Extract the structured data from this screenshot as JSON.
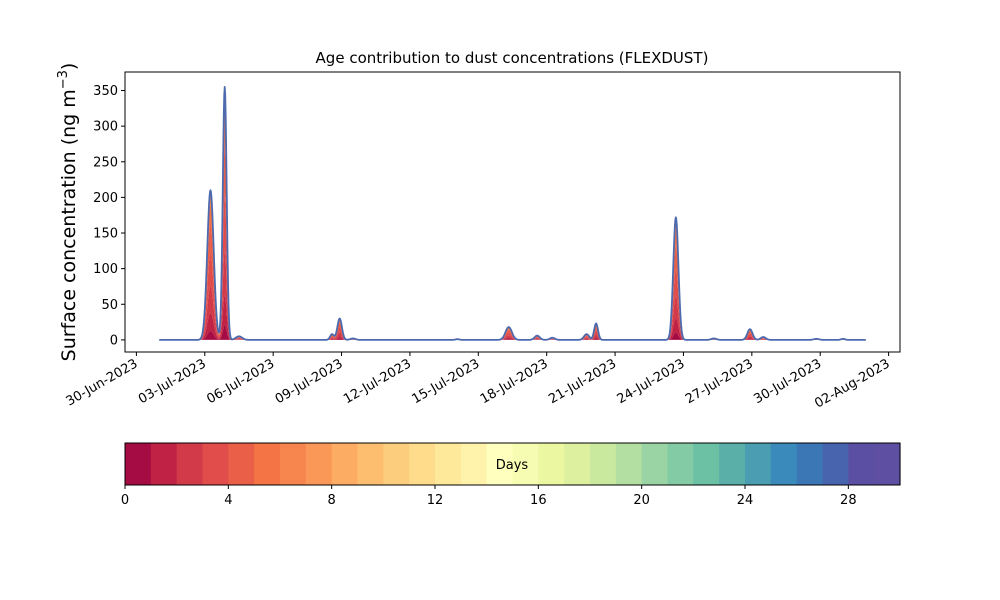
{
  "chart_data": {
    "type": "area",
    "title": "Age contribution to dust concentrations (FLEXDUST)",
    "ylabel_main": "Surface concentration (ng m",
    "ylabel_sup": "−3",
    "ylabel_close": ")",
    "xlabel": "",
    "ylim": [
      -17,
      376
    ],
    "xlim": [
      "2023-06-29 12:00",
      "2023-08-02 12:00"
    ],
    "y_ticks": [
      0,
      50,
      100,
      150,
      200,
      250,
      300,
      350
    ],
    "x_tick_labels": [
      "30-Jun-2023",
      "03-Jul-2023",
      "06-Jul-2023",
      "09-Jul-2023",
      "12-Jul-2023",
      "15-Jul-2023",
      "18-Jul-2023",
      "21-Jul-2023",
      "24-Jul-2023",
      "27-Jul-2023",
      "30-Jul-2023",
      "02-Aug-2023"
    ],
    "x_tick_dates": [
      "2023-06-30",
      "2023-07-03",
      "2023-07-06",
      "2023-07-09",
      "2023-07-12",
      "2023-07-15",
      "2023-07-18",
      "2023-07-21",
      "2023-07-24",
      "2023-07-27",
      "2023-07-30",
      "2023-08-02"
    ],
    "grid": false,
    "x_start": "2023-07-01 00:00",
    "x_end": "2023-08-01 00:00",
    "total_line_color": "#4c6aad",
    "total_concentration_peaks": [
      {
        "center": "2023-07-03 06:00",
        "height": 210,
        "width_h": 5
      },
      {
        "center": "2023-07-03 21:00",
        "height": 355,
        "width_h": 3
      },
      {
        "center": "2023-07-04 12:00",
        "height": 5,
        "width_h": 5
      },
      {
        "center": "2023-07-08 14:00",
        "height": 8,
        "width_h": 3
      },
      {
        "center": "2023-07-08 22:00",
        "height": 30,
        "width_h": 3.5
      },
      {
        "center": "2023-07-09 12:00",
        "height": 2,
        "width_h": 4
      },
      {
        "center": "2023-07-14 02:00",
        "height": 1,
        "width_h": 3
      },
      {
        "center": "2023-07-16 08:00",
        "height": 18,
        "width_h": 5
      },
      {
        "center": "2023-07-17 14:00",
        "height": 6,
        "width_h": 4
      },
      {
        "center": "2023-07-18 06:00",
        "height": 3,
        "width_h": 4
      },
      {
        "center": "2023-07-19 18:00",
        "height": 8,
        "width_h": 4
      },
      {
        "center": "2023-07-20 04:00",
        "height": 23,
        "width_h": 3
      },
      {
        "center": "2023-07-23 16:00",
        "height": 172,
        "width_h": 4
      },
      {
        "center": "2023-07-25 08:00",
        "height": 2,
        "width_h": 4
      },
      {
        "center": "2023-07-26 22:00",
        "height": 15,
        "width_h": 4
      },
      {
        "center": "2023-07-27 12:00",
        "height": 4,
        "width_h": 4
      },
      {
        "center": "2023-07-29 20:00",
        "height": 1.5,
        "width_h": 4
      },
      {
        "center": "2023-07-31 00:00",
        "height": 1.5,
        "width_h": 3
      }
    ],
    "colorbar": {
      "label": "Days",
      "vmin": 0,
      "vmax": 30,
      "ticks": [
        0,
        4,
        8,
        12,
        16,
        20,
        24,
        28
      ],
      "colors": [
        "#a50c43",
        "#bf2244",
        "#d23a49",
        "#e04d4b",
        "#ea5f47",
        "#f47445",
        "#f7864e",
        "#fa9858",
        "#fcac63",
        "#fdbe70",
        "#fdcd7e",
        "#fedc8b",
        "#fee899",
        "#fff3ac",
        "#ffffbe",
        "#f7fcb3",
        "#ecf7a2",
        "#ddf0a0",
        "#c9e99e",
        "#b3e0a2",
        "#9ad4a4",
        "#82cba5",
        "#6cc1a5",
        "#5aafa8",
        "#4b9eb1",
        "#3a8bbb",
        "#3b77b5",
        "#4864ae",
        "#5a4fa3",
        "#5e4fa2"
      ]
    }
  }
}
